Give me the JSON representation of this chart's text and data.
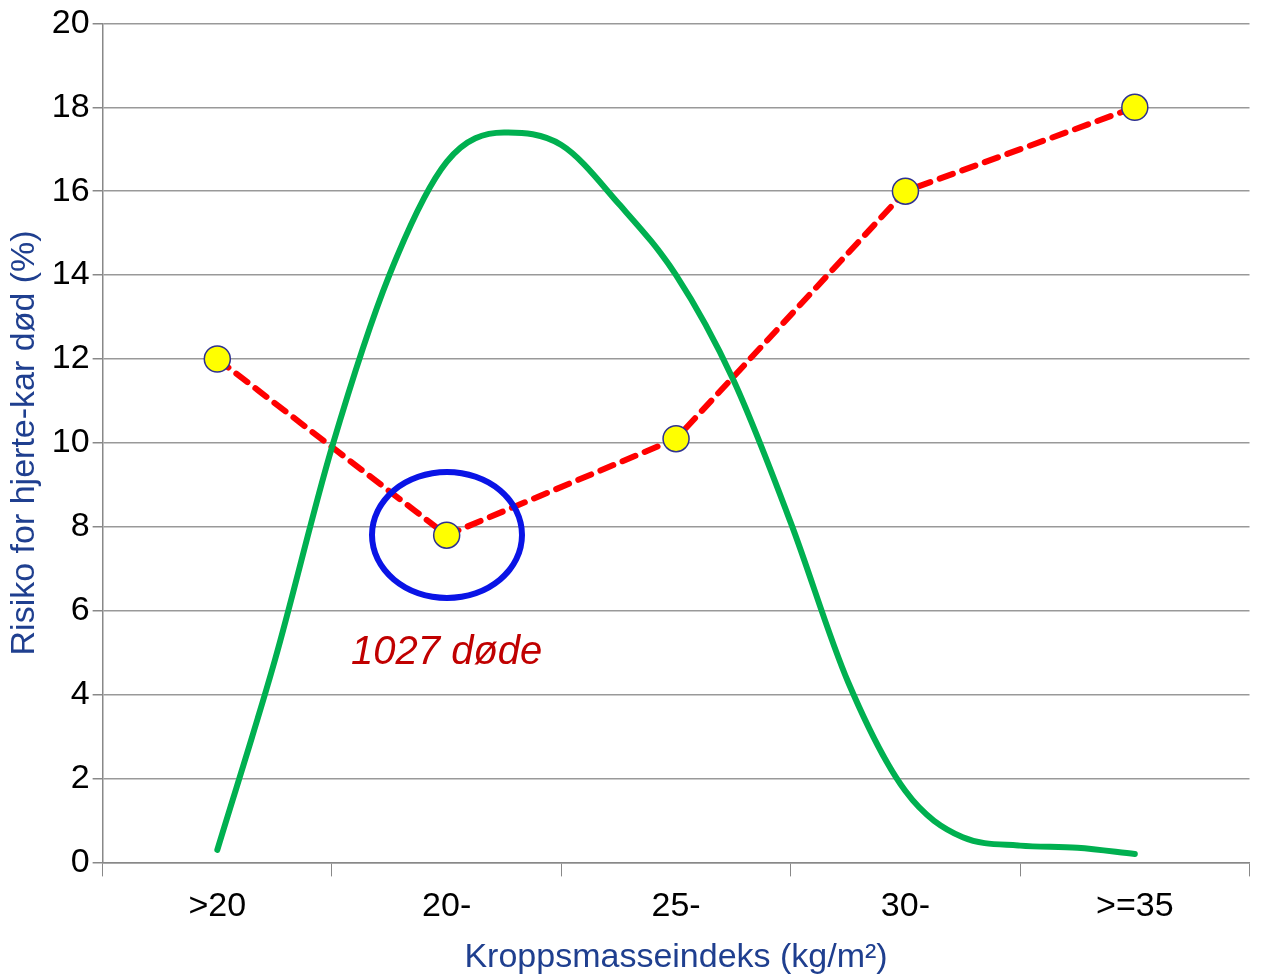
{
  "chart_data": {
    "type": "line",
    "xlabel": "Kroppsmasseindeks (kg/m²)",
    "ylabel": "Risiko for hjerte-kar død (%)",
    "categories": [
      null,
      null,
      ">20",
      null,
      null,
      null,
      "20-",
      null,
      null,
      null,
      "25-",
      null,
      null,
      null,
      "30-",
      null,
      null,
      null,
      ">=35",
      null,
      null
    ],
    "ylim": [
      0,
      20
    ],
    "yticks": [
      0,
      2,
      4,
      6,
      8,
      10,
      12,
      14,
      16,
      18,
      20
    ],
    "grid": "y",
    "legend": false,
    "series": [
      {
        "color": "#00b050",
        "marker": "none",
        "line_style": "solid",
        "values": [
          null,
          null,
          0.3,
          4.8,
          9.9,
          14.0,
          16.7,
          17.4,
          17.1,
          15.7,
          14.0,
          11.5,
          8.1,
          4.3,
          1.7,
          0.6,
          0.4,
          0.35,
          0.2,
          null,
          null
        ]
      },
      {
        "color": "#ff0000",
        "marker": "circle",
        "line_style": "dashed",
        "values": [
          null,
          null,
          12,
          null,
          null,
          null,
          7.8,
          null,
          null,
          null,
          10.1,
          null,
          null,
          null,
          16,
          null,
          null,
          null,
          18,
          null,
          null
        ]
      }
    ],
    "annotations": [
      "1027 døde"
    ]
  }
}
